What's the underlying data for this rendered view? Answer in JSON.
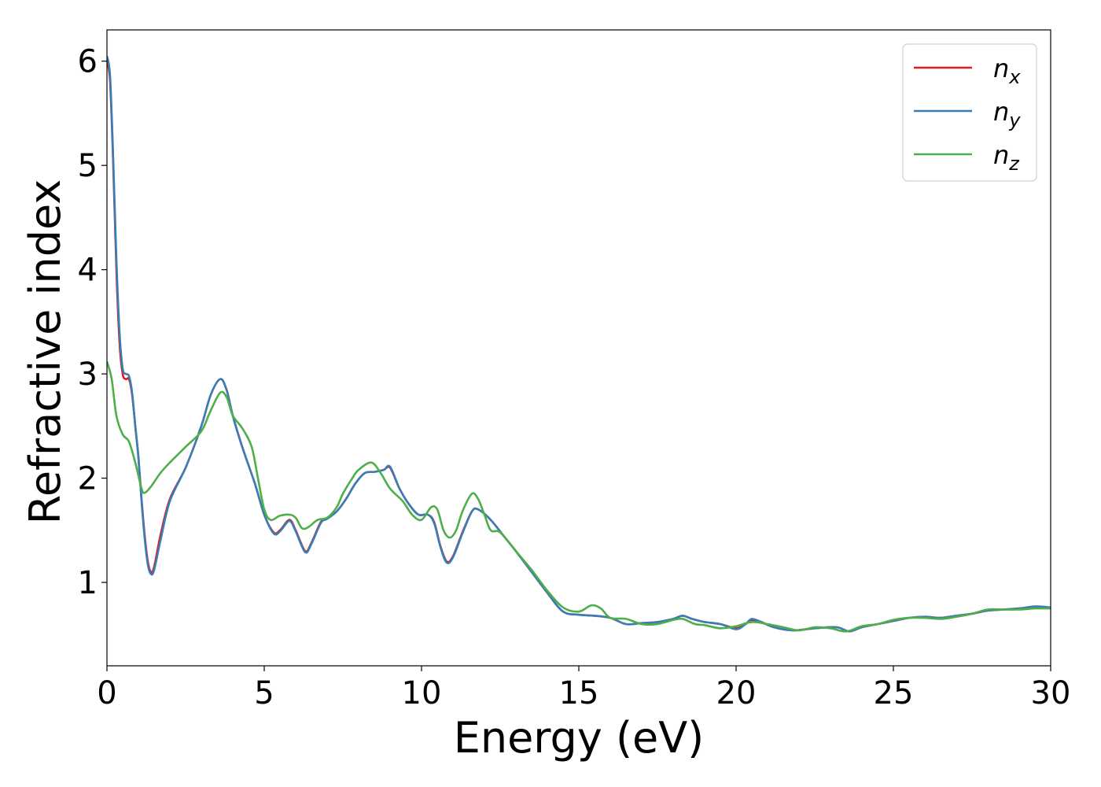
{
  "chart_data": {
    "type": "line",
    "title": "",
    "xlabel": "Energy (eV)",
    "ylabel": "Refractive index",
    "xlim": [
      0,
      30
    ],
    "ylim": [
      0.2,
      6.3
    ],
    "xticks": [
      0,
      5,
      10,
      15,
      20,
      25,
      30
    ],
    "yticks": [
      1,
      2,
      3,
      4,
      5,
      6
    ],
    "grid": false,
    "legend_position": "top-right",
    "series": [
      {
        "name": "n",
        "subscript": "x",
        "color": "#e41a1c",
        "points": [
          [
            0,
            6.0
          ],
          [
            0.1,
            5.8
          ],
          [
            0.2,
            5.0
          ],
          [
            0.3,
            4.0
          ],
          [
            0.4,
            3.3
          ],
          [
            0.5,
            3.0
          ],
          [
            0.6,
            2.95
          ],
          [
            0.7,
            2.95
          ],
          [
            0.8,
            2.8
          ],
          [
            0.9,
            2.5
          ],
          [
            1.0,
            2.2
          ],
          [
            1.1,
            1.8
          ],
          [
            1.2,
            1.45
          ],
          [
            1.3,
            1.2
          ],
          [
            1.4,
            1.1
          ],
          [
            1.5,
            1.15
          ],
          [
            1.7,
            1.45
          ],
          [
            2.0,
            1.8
          ],
          [
            2.5,
            2.1
          ],
          [
            3.0,
            2.5
          ],
          [
            3.3,
            2.8
          ],
          [
            3.6,
            2.95
          ],
          [
            3.8,
            2.85
          ],
          [
            4.0,
            2.6
          ],
          [
            4.3,
            2.3
          ],
          [
            4.7,
            1.95
          ],
          [
            5.0,
            1.65
          ],
          [
            5.3,
            1.48
          ],
          [
            5.5,
            1.5
          ],
          [
            5.8,
            1.6
          ],
          [
            6.0,
            1.5
          ],
          [
            6.3,
            1.3
          ],
          [
            6.5,
            1.38
          ],
          [
            6.8,
            1.58
          ],
          [
            7.0,
            1.62
          ],
          [
            7.3,
            1.68
          ],
          [
            7.6,
            1.8
          ],
          [
            7.9,
            1.95
          ],
          [
            8.2,
            2.05
          ],
          [
            8.5,
            2.06
          ],
          [
            8.8,
            2.08
          ],
          [
            9.0,
            2.1
          ],
          [
            9.3,
            1.9
          ],
          [
            9.6,
            1.75
          ],
          [
            9.9,
            1.65
          ],
          [
            10.2,
            1.65
          ],
          [
            10.4,
            1.58
          ],
          [
            10.6,
            1.35
          ],
          [
            10.8,
            1.2
          ],
          [
            11.0,
            1.25
          ],
          [
            11.3,
            1.48
          ],
          [
            11.6,
            1.68
          ],
          [
            11.8,
            1.7
          ],
          [
            12.2,
            1.6
          ],
          [
            12.6,
            1.45
          ],
          [
            13.0,
            1.3
          ],
          [
            13.5,
            1.1
          ],
          [
            14.0,
            0.9
          ],
          [
            14.5,
            0.72
          ],
          [
            15.0,
            0.69
          ],
          [
            15.5,
            0.68
          ],
          [
            16.0,
            0.66
          ],
          [
            16.5,
            0.6
          ],
          [
            17.0,
            0.61
          ],
          [
            17.5,
            0.62
          ],
          [
            18.0,
            0.65
          ],
          [
            18.3,
            0.68
          ],
          [
            18.6,
            0.65
          ],
          [
            19.0,
            0.62
          ],
          [
            19.5,
            0.6
          ],
          [
            20.0,
            0.56
          ],
          [
            20.3,
            0.6
          ],
          [
            20.5,
            0.64
          ],
          [
            20.8,
            0.62
          ],
          [
            21.2,
            0.57
          ],
          [
            21.8,
            0.54
          ],
          [
            22.5,
            0.56
          ],
          [
            23.2,
            0.57
          ],
          [
            23.6,
            0.53
          ],
          [
            24.0,
            0.57
          ],
          [
            24.5,
            0.6
          ],
          [
            25.0,
            0.63
          ],
          [
            25.5,
            0.66
          ],
          [
            26.0,
            0.67
          ],
          [
            26.5,
            0.66
          ],
          [
            27.0,
            0.68
          ],
          [
            27.5,
            0.7
          ],
          [
            28.0,
            0.73
          ],
          [
            28.5,
            0.74
          ],
          [
            29.0,
            0.75
          ],
          [
            29.5,
            0.76
          ],
          [
            30.0,
            0.76
          ]
        ]
      },
      {
        "name": "n",
        "subscript": "y",
        "color": "#377eb8",
        "points": [
          [
            0,
            6.05
          ],
          [
            0.1,
            5.85
          ],
          [
            0.2,
            5.05
          ],
          [
            0.3,
            4.1
          ],
          [
            0.4,
            3.4
          ],
          [
            0.5,
            3.05
          ],
          [
            0.6,
            3.0
          ],
          [
            0.7,
            2.98
          ],
          [
            0.8,
            2.82
          ],
          [
            0.9,
            2.5
          ],
          [
            1.0,
            2.2
          ],
          [
            1.1,
            1.78
          ],
          [
            1.2,
            1.42
          ],
          [
            1.3,
            1.17
          ],
          [
            1.4,
            1.08
          ],
          [
            1.5,
            1.12
          ],
          [
            1.7,
            1.4
          ],
          [
            2.0,
            1.78
          ],
          [
            2.5,
            2.1
          ],
          [
            3.0,
            2.5
          ],
          [
            3.3,
            2.8
          ],
          [
            3.6,
            2.95
          ],
          [
            3.8,
            2.85
          ],
          [
            4.0,
            2.6
          ],
          [
            4.3,
            2.3
          ],
          [
            4.7,
            1.95
          ],
          [
            5.0,
            1.65
          ],
          [
            5.3,
            1.47
          ],
          [
            5.5,
            1.49
          ],
          [
            5.8,
            1.59
          ],
          [
            6.0,
            1.49
          ],
          [
            6.3,
            1.29
          ],
          [
            6.5,
            1.37
          ],
          [
            6.8,
            1.57
          ],
          [
            7.0,
            1.61
          ],
          [
            7.3,
            1.68
          ],
          [
            7.6,
            1.8
          ],
          [
            7.9,
            1.95
          ],
          [
            8.2,
            2.05
          ],
          [
            8.5,
            2.06
          ],
          [
            8.8,
            2.08
          ],
          [
            9.0,
            2.11
          ],
          [
            9.3,
            1.9
          ],
          [
            9.6,
            1.75
          ],
          [
            9.9,
            1.65
          ],
          [
            10.2,
            1.65
          ],
          [
            10.4,
            1.57
          ],
          [
            10.6,
            1.34
          ],
          [
            10.8,
            1.19
          ],
          [
            11.0,
            1.24
          ],
          [
            11.3,
            1.47
          ],
          [
            11.6,
            1.68
          ],
          [
            11.8,
            1.7
          ],
          [
            12.2,
            1.6
          ],
          [
            12.6,
            1.45
          ],
          [
            13.0,
            1.3
          ],
          [
            13.5,
            1.1
          ],
          [
            14.0,
            0.9
          ],
          [
            14.5,
            0.72
          ],
          [
            15.0,
            0.69
          ],
          [
            15.5,
            0.68
          ],
          [
            16.0,
            0.66
          ],
          [
            16.5,
            0.6
          ],
          [
            17.0,
            0.61
          ],
          [
            17.5,
            0.62
          ],
          [
            18.0,
            0.65
          ],
          [
            18.3,
            0.68
          ],
          [
            18.6,
            0.65
          ],
          [
            19.0,
            0.62
          ],
          [
            19.5,
            0.6
          ],
          [
            20.0,
            0.55
          ],
          [
            20.3,
            0.6
          ],
          [
            20.5,
            0.65
          ],
          [
            20.8,
            0.62
          ],
          [
            21.2,
            0.57
          ],
          [
            21.8,
            0.54
          ],
          [
            22.5,
            0.56
          ],
          [
            23.2,
            0.57
          ],
          [
            23.6,
            0.53
          ],
          [
            24.0,
            0.57
          ],
          [
            24.5,
            0.6
          ],
          [
            25.0,
            0.63
          ],
          [
            25.5,
            0.66
          ],
          [
            26.0,
            0.67
          ],
          [
            26.5,
            0.66
          ],
          [
            27.0,
            0.68
          ],
          [
            27.5,
            0.7
          ],
          [
            28.0,
            0.73
          ],
          [
            28.5,
            0.74
          ],
          [
            29.0,
            0.75
          ],
          [
            29.5,
            0.77
          ],
          [
            30.0,
            0.76
          ]
        ]
      },
      {
        "name": "n",
        "subscript": "z",
        "color": "#4daf4a",
        "points": [
          [
            0,
            3.12
          ],
          [
            0.15,
            2.95
          ],
          [
            0.3,
            2.6
          ],
          [
            0.5,
            2.42
          ],
          [
            0.7,
            2.35
          ],
          [
            0.9,
            2.15
          ],
          [
            1.1,
            1.9
          ],
          [
            1.2,
            1.86
          ],
          [
            1.4,
            1.92
          ],
          [
            1.7,
            2.05
          ],
          [
            2.0,
            2.15
          ],
          [
            2.5,
            2.3
          ],
          [
            3.0,
            2.45
          ],
          [
            3.3,
            2.65
          ],
          [
            3.6,
            2.82
          ],
          [
            3.8,
            2.78
          ],
          [
            4.0,
            2.6
          ],
          [
            4.3,
            2.48
          ],
          [
            4.6,
            2.3
          ],
          [
            4.8,
            2.0
          ],
          [
            5.0,
            1.7
          ],
          [
            5.2,
            1.6
          ],
          [
            5.5,
            1.64
          ],
          [
            5.8,
            1.65
          ],
          [
            6.0,
            1.62
          ],
          [
            6.2,
            1.52
          ],
          [
            6.4,
            1.53
          ],
          [
            6.7,
            1.6
          ],
          [
            7.0,
            1.62
          ],
          [
            7.3,
            1.72
          ],
          [
            7.5,
            1.85
          ],
          [
            7.8,
            2.0
          ],
          [
            8.0,
            2.08
          ],
          [
            8.4,
            2.15
          ],
          [
            8.7,
            2.05
          ],
          [
            9.0,
            1.9
          ],
          [
            9.4,
            1.78
          ],
          [
            9.7,
            1.65
          ],
          [
            10.0,
            1.6
          ],
          [
            10.3,
            1.72
          ],
          [
            10.5,
            1.7
          ],
          [
            10.7,
            1.5
          ],
          [
            10.9,
            1.43
          ],
          [
            11.1,
            1.5
          ],
          [
            11.3,
            1.68
          ],
          [
            11.6,
            1.85
          ],
          [
            11.8,
            1.8
          ],
          [
            12.0,
            1.65
          ],
          [
            12.2,
            1.5
          ],
          [
            12.5,
            1.48
          ],
          [
            13.0,
            1.3
          ],
          [
            13.5,
            1.12
          ],
          [
            14.0,
            0.92
          ],
          [
            14.5,
            0.76
          ],
          [
            15.0,
            0.72
          ],
          [
            15.4,
            0.78
          ],
          [
            15.7,
            0.75
          ],
          [
            16.0,
            0.66
          ],
          [
            16.5,
            0.65
          ],
          [
            17.0,
            0.6
          ],
          [
            17.5,
            0.6
          ],
          [
            18.0,
            0.64
          ],
          [
            18.3,
            0.65
          ],
          [
            18.7,
            0.6
          ],
          [
            19.0,
            0.59
          ],
          [
            19.5,
            0.56
          ],
          [
            20.0,
            0.58
          ],
          [
            20.5,
            0.62
          ],
          [
            21.0,
            0.6
          ],
          [
            21.5,
            0.57
          ],
          [
            22.0,
            0.54
          ],
          [
            22.5,
            0.57
          ],
          [
            23.0,
            0.56
          ],
          [
            23.5,
            0.53
          ],
          [
            24.0,
            0.58
          ],
          [
            24.5,
            0.6
          ],
          [
            25.0,
            0.64
          ],
          [
            25.5,
            0.66
          ],
          [
            26.0,
            0.66
          ],
          [
            26.5,
            0.65
          ],
          [
            27.0,
            0.67
          ],
          [
            27.5,
            0.7
          ],
          [
            28.0,
            0.74
          ],
          [
            28.5,
            0.74
          ],
          [
            29.0,
            0.74
          ],
          [
            29.5,
            0.75
          ],
          [
            30.0,
            0.75
          ]
        ]
      }
    ]
  }
}
